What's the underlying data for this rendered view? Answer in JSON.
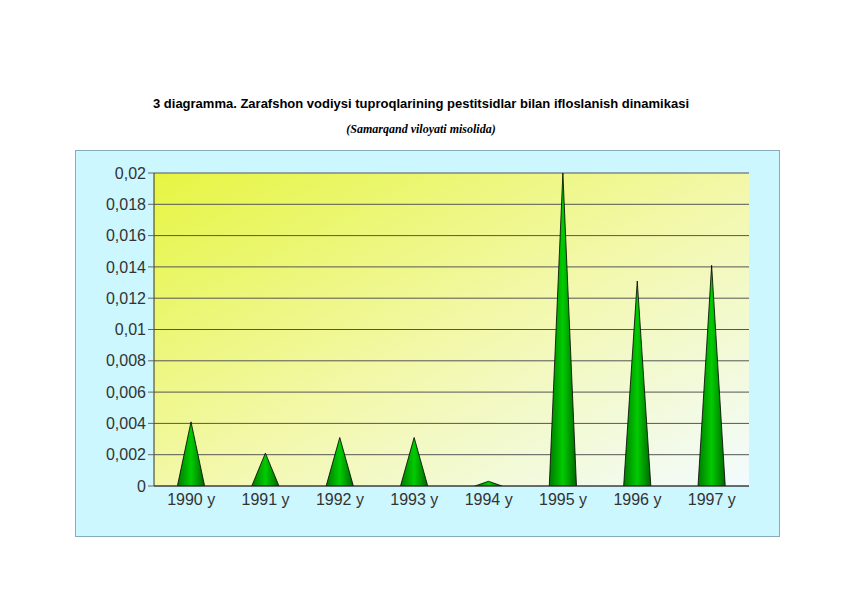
{
  "chart_data": {
    "type": "bar",
    "title": "3 diagramma. Zarafshon vodiysi tuproqlarining pestitsidlar bilan ifloslanish dinamikasi",
    "subtitle": "(Samarqand viloyati misolida)",
    "categories": [
      "1990 y",
      "1991 y",
      "1992 y",
      "1993 y",
      "1994 y",
      "1995 y",
      "1996 y",
      "1997 y"
    ],
    "values": [
      0.0041,
      0.0021,
      0.0031,
      0.0031,
      0.0003,
      0.02,
      0.0131,
      0.0141
    ],
    "color": "#00cc00",
    "ylim": [
      0,
      0.02
    ],
    "yticks": [
      0,
      {
        "value": 0.002,
        "label": "0,002"
      },
      {
        "value": 0.004,
        "label": "0,004"
      },
      {
        "value": 0.006,
        "label": "0,006"
      },
      {
        "value": 0.008,
        "label": "0,008"
      },
      {
        "value": 0.01,
        "label": "0,01"
      },
      {
        "value": 0.012,
        "label": "0,012"
      },
      {
        "value": 0.014,
        "label": "0,014"
      },
      {
        "value": 0.016,
        "label": "0,016"
      },
      {
        "value": 0.018,
        "label": "0,018"
      },
      {
        "value": 0.02,
        "label": "0,02"
      }
    ],
    "grid": true
  }
}
